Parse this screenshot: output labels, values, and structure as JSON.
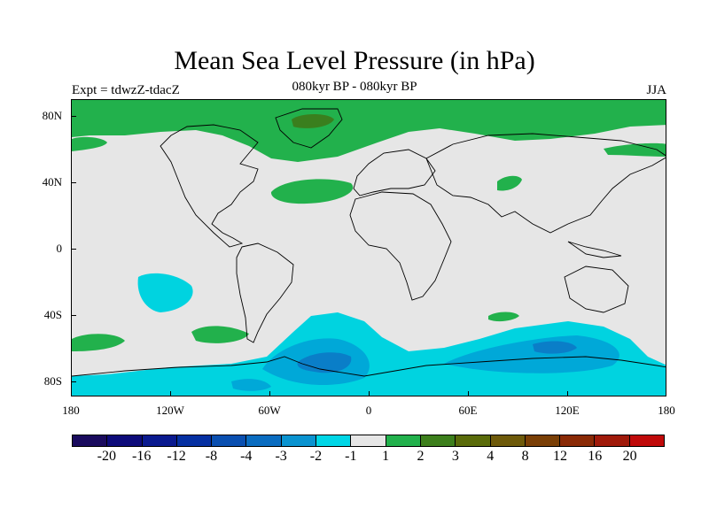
{
  "title": "Mean Sea Level Pressure (in hPa)",
  "subtitle": "080kyr BP - 080kyr BP",
  "left_label": "Expt = tdwzZ-tdacZ",
  "right_label": "JJA",
  "map": {
    "lat_labels": [
      "80N",
      "40N",
      "0",
      "40S",
      "80S"
    ],
    "lon_labels": [
      "180",
      "120W",
      "60W",
      "0",
      "60E",
      "120E",
      "180"
    ],
    "background_color": "#e6e6e6",
    "fill_colors": {
      "pos_1_2": "#22b14c",
      "pos_2_3": "#3a7f1e",
      "pos_3_4": "#5b6a10",
      "neg_1_2": "#00d3e0",
      "neg_2_3": "#00a8d8",
      "neg_3_4": "#0a7ec8"
    }
  },
  "colorbar": {
    "colors": [
      "#1a0b5e",
      "#0d0b7a",
      "#0a1a8f",
      "#0530a2",
      "#0a4fb0",
      "#0a6cc0",
      "#0a93d0",
      "#00d6e6",
      "#e6e6e6",
      "#22b14c",
      "#3d7f1c",
      "#5a6b0a",
      "#6e5a0a",
      "#7a3f06",
      "#8a2a06",
      "#a01a0a",
      "#c00a0a"
    ],
    "labels": [
      "-20",
      "-16",
      "-12",
      "-8",
      "-4",
      "-3",
      "-2",
      "-1",
      "1",
      "2",
      "3",
      "4",
      "8",
      "12",
      "16",
      "20"
    ]
  }
}
